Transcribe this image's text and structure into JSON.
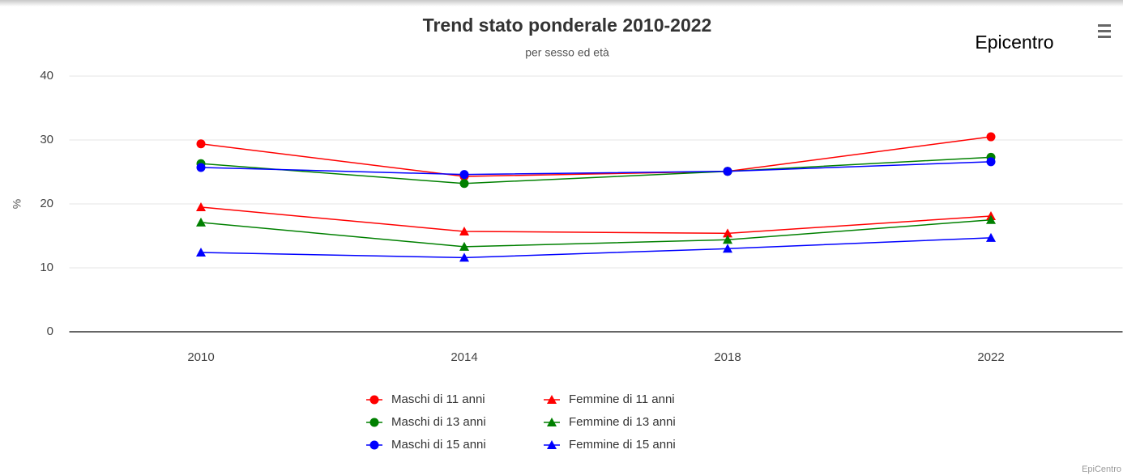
{
  "chart_data": {
    "type": "line",
    "title": "Trend stato ponderale 2010-2022",
    "subtitle": "per sesso ed età",
    "annotation": "Epicentro",
    "credits": "EpiCentro",
    "ylabel": "%",
    "categories": [
      "2010",
      "2014",
      "2018",
      "2022"
    ],
    "ylim": [
      0,
      40
    ],
    "yticks": [
      0,
      10,
      20,
      30,
      40
    ],
    "grid": true,
    "series": [
      {
        "name": "Maschi di 11 anni",
        "color": "#ff0000",
        "marker": "circle",
        "values": [
          29.4,
          24.3,
          25.1,
          30.5
        ]
      },
      {
        "name": "Femmine di 11 anni",
        "color": "#ff0000",
        "marker": "triangle",
        "values": [
          19.5,
          15.7,
          15.4,
          18.1
        ]
      },
      {
        "name": "Maschi di 13 anni",
        "color": "#008000",
        "marker": "circle",
        "values": [
          26.3,
          23.2,
          25.1,
          27.3
        ]
      },
      {
        "name": "Femmine di 13 anni",
        "color": "#008000",
        "marker": "triangle",
        "values": [
          17.1,
          13.3,
          14.4,
          17.5
        ]
      },
      {
        "name": "Maschi di 15 anni",
        "color": "#0000ff",
        "marker": "circle",
        "values": [
          25.7,
          24.6,
          25.1,
          26.6
        ]
      },
      {
        "name": "Femmine di 15 anni",
        "color": "#0000ff",
        "marker": "triangle",
        "values": [
          12.4,
          11.6,
          13.0,
          14.7
        ]
      }
    ]
  }
}
